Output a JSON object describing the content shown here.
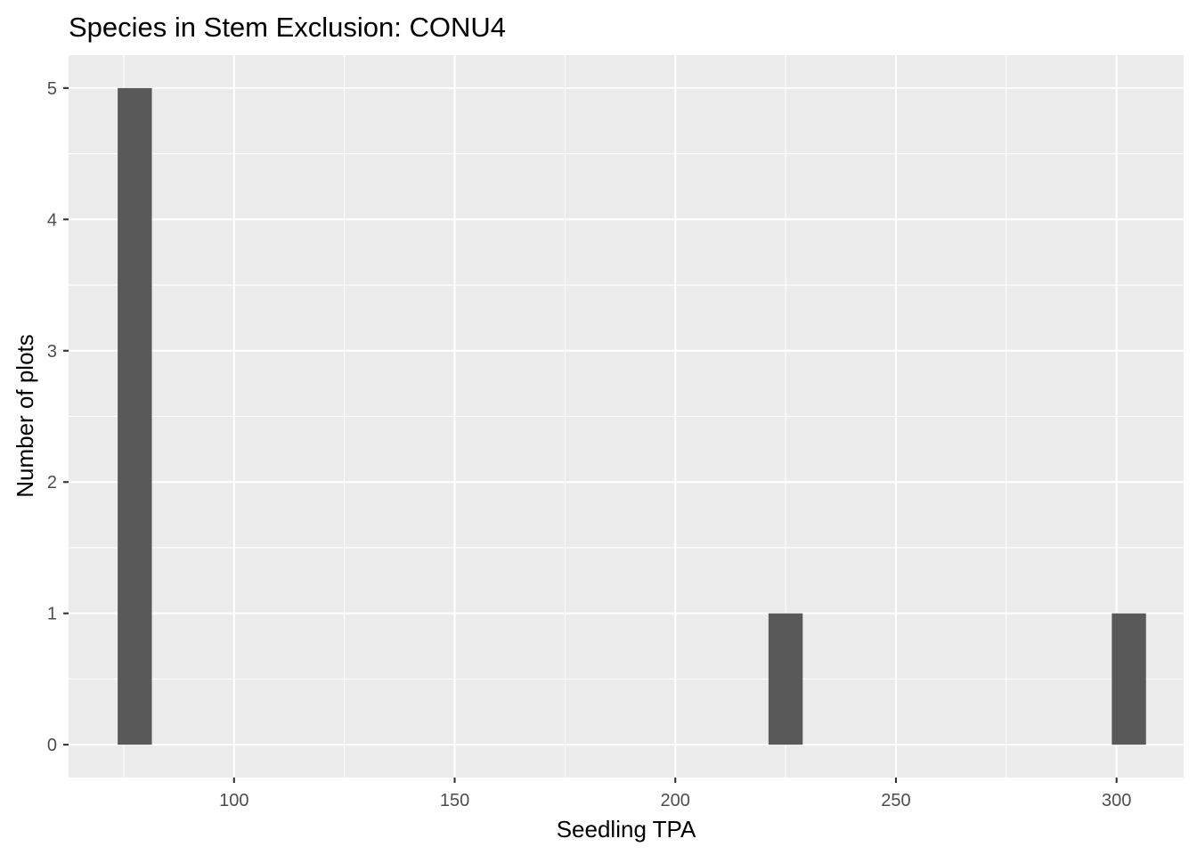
{
  "chart_data": {
    "type": "bar",
    "title": "Species in Stem Exclusion: CONU4",
    "xlabel": "Seedling TPA",
    "ylabel": "Number of plots",
    "xlim": [
      62.5,
      315.2
    ],
    "ylim": [
      -0.25,
      5.25
    ],
    "x_ticks": [
      100,
      150,
      200,
      250,
      300
    ],
    "x_minor": [
      75,
      125,
      175,
      225,
      275
    ],
    "y_ticks": [
      0,
      1,
      2,
      3,
      4,
      5
    ],
    "y_minor": [
      0.5,
      1.5,
      2.5,
      3.5,
      4.5
    ],
    "bin_width": 7.75,
    "bars": [
      {
        "x": 77.5,
        "count": 5
      },
      {
        "x": 225.0,
        "count": 1
      },
      {
        "x": 302.8,
        "count": 1
      }
    ],
    "grid": true,
    "legend": "none",
    "colors": {
      "panel": "#ebebeb",
      "bar": "#595959",
      "grid": "#ffffff",
      "tick_text": "#4d4d4d"
    }
  }
}
